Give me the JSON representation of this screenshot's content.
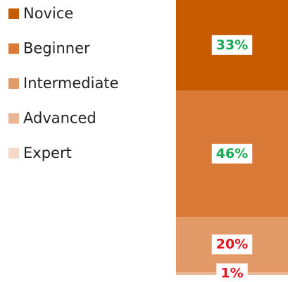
{
  "chart_data": {
    "type": "stacked-bar",
    "series": [
      {
        "name": "Novice",
        "color": "#c85a00",
        "values": [
          33
        ],
        "value_labels": [
          "33%"
        ],
        "label_color": "#1aaa55"
      },
      {
        "name": "Beginner",
        "color": "#d97a38",
        "values": [
          46
        ],
        "value_labels": [
          "46%"
        ],
        "label_color": "#1aaa55"
      },
      {
        "name": "Intermediate",
        "color": "#e29a68",
        "values": [
          20
        ],
        "value_labels": [
          "20%"
        ],
        "label_color": "#e8141c"
      },
      {
        "name": "Advanced",
        "color": "#ebb694",
        "values": [
          1
        ],
        "value_labels": [
          "1%"
        ],
        "label_color": "#e8141c"
      },
      {
        "name": "Expert",
        "color": "#f5d9c6",
        "values": [
          0
        ]
      }
    ]
  }
}
